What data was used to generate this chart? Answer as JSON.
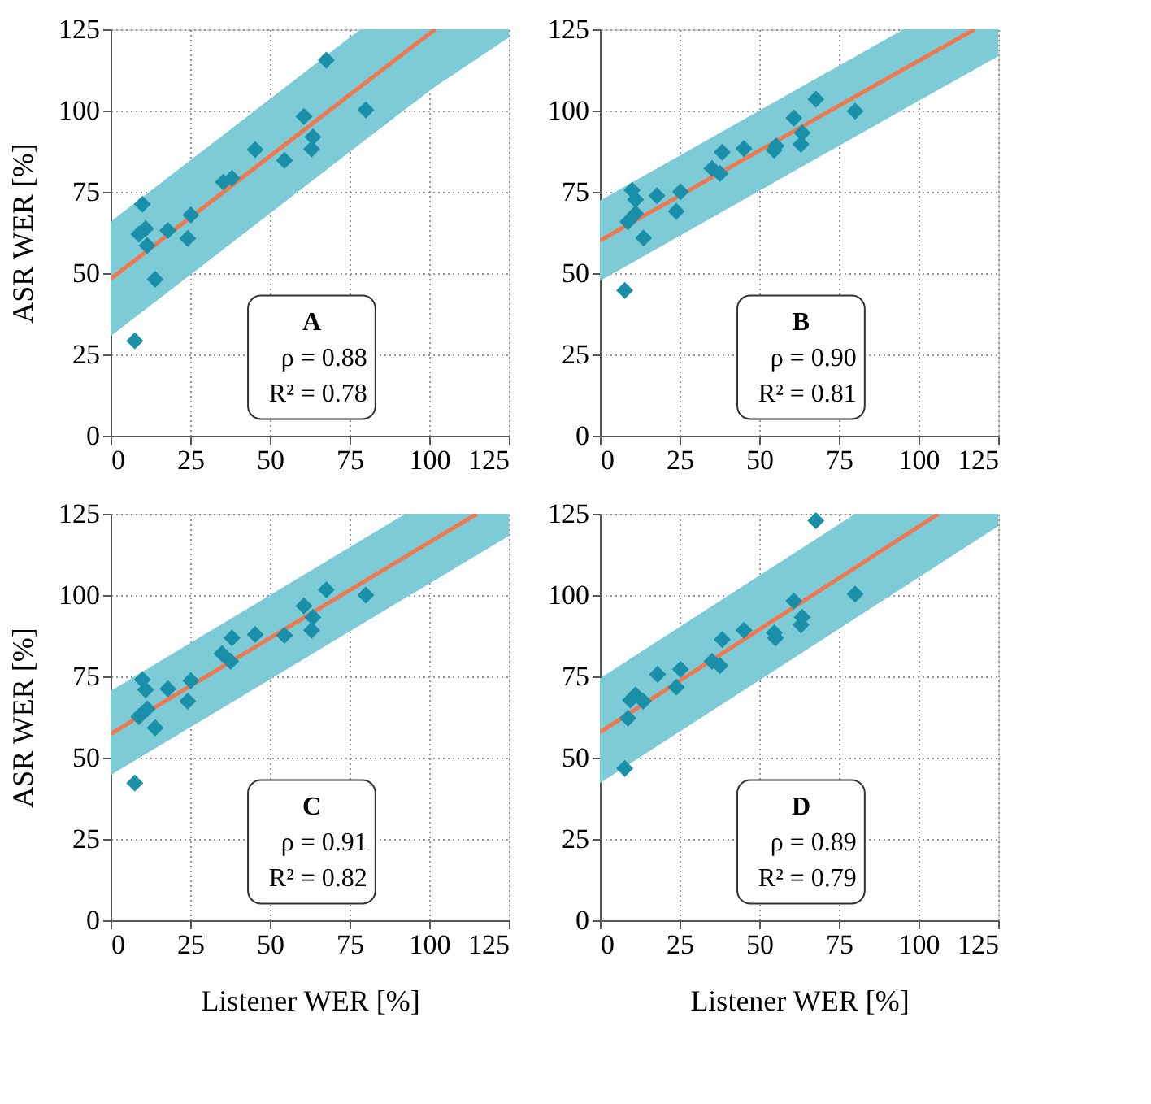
{
  "chart_data": [
    {
      "type": "scatter",
      "ylabel": "ASR WER [%]",
      "xlim": [
        0,
        125
      ],
      "ylim": [
        0,
        125
      ],
      "xticks": [
        0,
        25,
        50,
        75,
        100,
        125
      ],
      "yticks": [
        0,
        25,
        50,
        75,
        100,
        125
      ],
      "grid": true,
      "annotations": [
        "A",
        "ρ = 0.88",
        "R² = 0.78"
      ],
      "series": [
        {
          "type": "line",
          "marker": "none",
          "color": "#f07850",
          "x": [
            0,
            78.4,
            101.9,
            125
          ],
          "values": [
            48.2,
            107.4,
            125,
            null
          ],
          "upper": [
            65.8,
            125,
            125,
            125
          ],
          "lower": [
            30.6,
            89.8,
            107.4,
            122.5
          ]
        },
        {
          "marker": "diamond",
          "color": "#1a8fa8",
          "x": [
            67.7,
            80.1,
            60.7,
            63.5,
            63.1,
            45.4,
            54.6,
            38.1,
            35.4,
            10.0,
            25.2,
            11.0,
            18.0,
            8.9,
            11.5,
            24.2,
            14.0,
            7.6
          ],
          "values": [
            115.5,
            100.2,
            98.2,
            91.9,
            88.2,
            88.0,
            84.7,
            79.2,
            78.0,
            71.2,
            67.9,
            63.7,
            63.1,
            62.0,
            58.5,
            60.7,
            48.1,
            29.2
          ]
        }
      ]
    },
    {
      "type": "scatter",
      "xlim": [
        0,
        125
      ],
      "ylim": [
        0,
        125
      ],
      "xticks": [
        0,
        25,
        50,
        75,
        100,
        125
      ],
      "yticks": [
        0,
        25,
        50,
        75,
        100,
        125
      ],
      "grid": true,
      "annotations": [
        "B",
        "ρ = 0.90",
        "R² = 0.81"
      ],
      "series": [
        {
          "type": "line",
          "marker": "none",
          "color": "#f07850",
          "x": [
            0,
            95.3,
            117.6,
            125
          ],
          "values": [
            60.0,
            112.7,
            125,
            null
          ],
          "upper": [
            72.3,
            125,
            125,
            125
          ],
          "lower": [
            47.6,
            100.4,
            112.6,
            116.7
          ]
        },
        {
          "marker": "diamond",
          "color": "#1a8fa8",
          "x": [
            67.8,
            80.1,
            60.9,
            63.5,
            63.1,
            45.2,
            54.7,
            55.3,
            38.4,
            35.2,
            37.7,
            10.1,
            11.2,
            17.9,
            25.3,
            24.0,
            11.2,
            8.8,
            13.7,
            7.8
          ],
          "values": [
            103.5,
            99.8,
            97.7,
            93.1,
            89.6,
            88.3,
            87.8,
            89.1,
            87.2,
            82.2,
            80.6,
            75.5,
            72.6,
            73.8,
            75.0,
            69.0,
            68.3,
            65.8,
            60.8,
            44.7
          ]
        }
      ]
    },
    {
      "type": "scatter",
      "xlabel": "Listener WER [%]",
      "ylabel": "ASR WER [%]",
      "xlim": [
        0,
        125
      ],
      "ylim": [
        0,
        125
      ],
      "xticks": [
        0,
        25,
        50,
        75,
        100,
        125
      ],
      "yticks": [
        0,
        25,
        50,
        75,
        100,
        125
      ],
      "grid": true,
      "annotations": [
        "C",
        "ρ = 0.91",
        "R² = 0.82"
      ],
      "series": [
        {
          "type": "line",
          "marker": "none",
          "color": "#f07850",
          "x": [
            0,
            92.5,
            115.0,
            125
          ],
          "values": [
            57.3,
            111.8,
            125,
            null
          ],
          "upper": [
            70.5,
            125,
            125,
            125
          ],
          "lower": [
            44.6,
            99.1,
            112.3,
            118.2
          ]
        },
        {
          "marker": "diamond",
          "color": "#1a8fa8",
          "x": [
            67.7,
            80.1,
            60.7,
            63.5,
            63.1,
            45.4,
            54.6,
            38.1,
            35.0,
            37.7,
            10.0,
            11.0,
            18.0,
            25.2,
            24.2,
            11.5,
            8.9,
            14.0,
            7.6
          ],
          "values": [
            101.6,
            100.0,
            96.7,
            93.2,
            89.2,
            87.9,
            87.6,
            86.8,
            82.0,
            79.6,
            74.0,
            70.9,
            71.2,
            73.7,
            67.4,
            65.0,
            62.6,
            59.2,
            42.2
          ]
        }
      ]
    },
    {
      "type": "scatter",
      "xlabel": "Listener WER [%]",
      "xlim": [
        0,
        125
      ],
      "ylim": [
        0,
        125
      ],
      "xticks": [
        0,
        25,
        50,
        75,
        100,
        125
      ],
      "yticks": [
        0,
        25,
        50,
        75,
        100,
        125
      ],
      "grid": true,
      "annotations": [
        "D",
        "ρ = 0.89",
        "R² = 0.79"
      ],
      "series": [
        {
          "type": "line",
          "marker": "none",
          "color": "#f07850",
          "x": [
            0,
            80.1,
            106.3,
            125
          ],
          "values": [
            57.8,
            108.4,
            125,
            null
          ],
          "upper": [
            74.4,
            125,
            125,
            125
          ],
          "lower": [
            42.2,
            92.8,
            109.4,
            121.2
          ]
        },
        {
          "marker": "diamond",
          "color": "#1a8fa8",
          "x": [
            67.8,
            80.1,
            60.9,
            63.5,
            63.1,
            45.2,
            54.7,
            55.1,
            38.4,
            35.2,
            37.7,
            18.1,
            25.3,
            24.0,
            11.2,
            9.6,
            13.6,
            8.8,
            7.8
          ],
          "values": [
            122.9,
            100.3,
            98.2,
            93.2,
            90.8,
            89.2,
            88.4,
            86.8,
            86.3,
            79.6,
            78.3,
            75.6,
            77.2,
            71.7,
            69.3,
            67.7,
            67.4,
            62.1,
            46.7
          ]
        }
      ]
    }
  ]
}
